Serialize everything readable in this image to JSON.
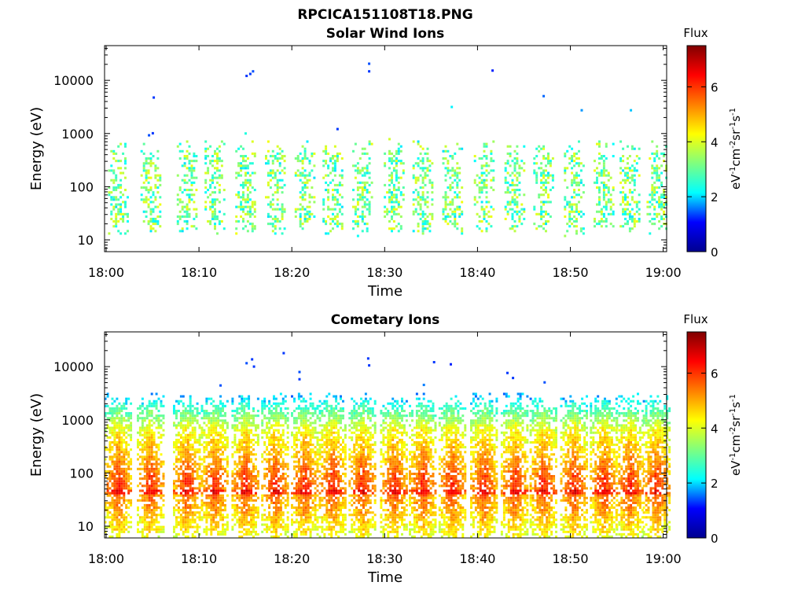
{
  "figure": {
    "filename_title": "RPCICA151108T18.PNG"
  },
  "colormap": {
    "name": "jet",
    "stops": [
      "#00008f",
      "#0000ff",
      "#00ffff",
      "#7fff7f",
      "#ffff00",
      "#ff7f00",
      "#ff0000",
      "#800000"
    ]
  },
  "chart_data": [
    {
      "type": "heatmap",
      "title": "Solar Wind Ions",
      "xlabel": "Time",
      "ylabel": "Energy (eV)",
      "x_ticks": [
        "18:00",
        "18:10",
        "18:20",
        "18:30",
        "18:40",
        "18:50",
        "19:00"
      ],
      "x_range_minutes": [
        0,
        60
      ],
      "y_scale": "log",
      "y_ticks": [
        "10",
        "100",
        "1000",
        "10000"
      ],
      "y_range": [
        6,
        45000
      ],
      "colorbar": {
        "title": "Flux",
        "label": "eV-1cm-2sr-1s-1",
        "ticks": [
          "0",
          "2",
          "4",
          "6"
        ],
        "range": [
          0,
          7.5
        ]
      },
      "bursts_center_minutes": [
        1.2,
        4.7,
        8.6,
        11.6,
        14.9,
        18.1,
        21.3,
        24.3,
        27.5,
        30.9,
        34.0,
        37.2,
        40.6,
        43.9,
        47.0,
        50.3,
        53.5,
        56.3,
        59.2
      ],
      "typical_energy_range_eV": [
        15,
        500
      ],
      "typical_flux_range": [
        2.0,
        4.2
      ],
      "isolated_high_energy_points": [
        {
          "t": 15.0,
          "e": 11500,
          "f": 1.3
        },
        {
          "t": 15.4,
          "e": 12500,
          "f": 1.3
        },
        {
          "t": 15.7,
          "e": 14000,
          "f": 1.4
        },
        {
          "t": 5.0,
          "e": 4500,
          "f": 1.3
        },
        {
          "t": 28.2,
          "e": 19500,
          "f": 1.4
        },
        {
          "t": 28.2,
          "e": 14000,
          "f": 1.3
        },
        {
          "t": 41.5,
          "e": 14500,
          "f": 1.2
        },
        {
          "t": 47.0,
          "e": 4800,
          "f": 1.5
        },
        {
          "t": 51.1,
          "e": 2600,
          "f": 1.7
        },
        {
          "t": 56.4,
          "e": 2600,
          "f": 1.9
        },
        {
          "t": 37.1,
          "e": 3000,
          "f": 2.1
        },
        {
          "t": 24.8,
          "e": 1150,
          "f": 1.3
        },
        {
          "t": 4.5,
          "e": 880,
          "f": 1.4
        },
        {
          "t": 4.9,
          "e": 960,
          "f": 1.3
        },
        {
          "t": 14.9,
          "e": 950,
          "f": 2.4
        }
      ]
    },
    {
      "type": "heatmap",
      "title": "Cometary Ions",
      "xlabel": "Time",
      "ylabel": "Energy (eV)",
      "x_ticks": [
        "18:00",
        "18:10",
        "18:20",
        "18:30",
        "18:40",
        "18:50",
        "19:00"
      ],
      "x_range_minutes": [
        0,
        60
      ],
      "y_scale": "log",
      "y_ticks": [
        "10",
        "100",
        "1000",
        "10000"
      ],
      "y_range": [
        6,
        45000
      ],
      "colorbar": {
        "title": "Flux",
        "label": "eV-1cm-2sr-1s-1",
        "ticks": [
          "0",
          "2",
          "4",
          "6"
        ],
        "range": [
          0,
          7.5
        ]
      },
      "bursts_center_minutes": [
        1.2,
        4.7,
        8.6,
        11.6,
        14.9,
        18.1,
        21.3,
        24.3,
        27.5,
        30.9,
        34.0,
        37.2,
        40.6,
        43.9,
        47.0,
        50.3,
        53.5,
        56.3,
        59.2
      ],
      "typical_energy_range_eV": [
        6,
        2000
      ],
      "peak_flux_near_eV": [
        30,
        100
      ],
      "flux_band_at_eV": 42,
      "typical_flux_range": [
        2.5,
        6.2
      ],
      "isolated_high_energy_points": [
        {
          "t": 15.0,
          "e": 11000,
          "f": 1.4
        },
        {
          "t": 15.6,
          "e": 13000,
          "f": 1.3
        },
        {
          "t": 15.8,
          "e": 9500,
          "f": 1.3
        },
        {
          "t": 19.0,
          "e": 17000,
          "f": 1.3
        },
        {
          "t": 20.7,
          "e": 7500,
          "f": 1.4
        },
        {
          "t": 20.7,
          "e": 5500,
          "f": 1.3
        },
        {
          "t": 28.1,
          "e": 13500,
          "f": 1.3
        },
        {
          "t": 28.2,
          "e": 10000,
          "f": 1.3
        },
        {
          "t": 35.2,
          "e": 11500,
          "f": 1.3
        },
        {
          "t": 37.0,
          "e": 10500,
          "f": 1.2
        },
        {
          "t": 43.1,
          "e": 7200,
          "f": 1.3
        },
        {
          "t": 43.7,
          "e": 5800,
          "f": 1.3
        },
        {
          "t": 12.2,
          "e": 4200,
          "f": 1.4
        },
        {
          "t": 34.1,
          "e": 4300,
          "f": 1.6
        },
        {
          "t": 47.1,
          "e": 4800,
          "f": 1.4
        }
      ]
    }
  ]
}
